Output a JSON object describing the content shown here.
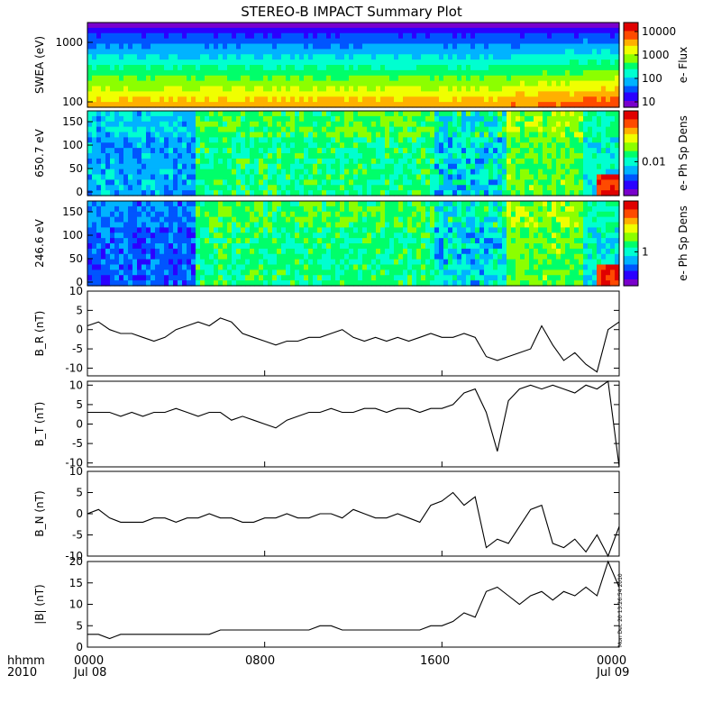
{
  "title": "STEREO-B IMPACT Summary Plot",
  "footer": {
    "hhmm": "hhmm",
    "year": "2010",
    "ticks": [
      {
        "time": "0000",
        "date": "Jul 08"
      },
      {
        "time": "0800",
        "date": ""
      },
      {
        "time": "1600",
        "date": ""
      },
      {
        "time": "0000",
        "date": "Jul 09"
      }
    ]
  },
  "timestamp_stamp": "Mon Dec 20 13:26:54 2010",
  "colors": {
    "axis": "#000000",
    "line": "#000000",
    "colormap": [
      "#7a00cc",
      "#2b00ff",
      "#0055ff",
      "#00b3ff",
      "#00ffd0",
      "#00ff6a",
      "#8cff00",
      "#f0ff00",
      "#ffb000",
      "#ff4a00",
      "#e00000"
    ]
  },
  "chart_data": [
    {
      "type": "heatmap",
      "name": "swea",
      "ylabel": "SWEA (eV)",
      "yscale": "log",
      "yticks": [
        "1000",
        "100"
      ],
      "colorbar_label": "e- Flux",
      "colorbar_ticks": [
        "10000",
        "1000",
        "100",
        "10"
      ]
    },
    {
      "type": "heatmap",
      "name": "pad650",
      "ylabel": "650.7 eV",
      "ylim": [
        0,
        180
      ],
      "yticks": [
        "150",
        "100",
        "50",
        "0"
      ],
      "colorbar_label": "e- Ph Sp Dens",
      "colorbar_ticks": [
        "0.01"
      ]
    },
    {
      "type": "heatmap",
      "name": "pad246",
      "ylabel": "246.6 eV",
      "ylim": [
        0,
        180
      ],
      "yticks": [
        "150",
        "100",
        "50",
        "0"
      ],
      "colorbar_label": "e- Ph Sp Dens",
      "colorbar_ticks": [
        "1"
      ]
    },
    {
      "type": "line",
      "name": "br",
      "ylabel": "B_R (nT)",
      "ylim": [
        -12,
        10
      ],
      "yticks": [
        "10",
        "5",
        "0",
        "-5",
        "-10"
      ],
      "x_hours": [
        0,
        0.5,
        1,
        1.5,
        2,
        2.5,
        3,
        3.5,
        4,
        4.5,
        5,
        5.5,
        6,
        6.5,
        7,
        7.5,
        8,
        8.5,
        9,
        9.5,
        10,
        10.5,
        11,
        11.5,
        12,
        12.5,
        13,
        13.5,
        14,
        14.5,
        15,
        15.5,
        16,
        16.5,
        17,
        17.5,
        18,
        18.5,
        19,
        19.5,
        20,
        20.5,
        21,
        21.5,
        22,
        22.5,
        23,
        23.5,
        24
      ],
      "values": [
        1,
        2,
        0,
        -1,
        -1,
        -2,
        -3,
        -2,
        0,
        1,
        2,
        1,
        3,
        2,
        -1,
        -2,
        -3,
        -4,
        -3,
        -3,
        -2,
        -2,
        -1,
        0,
        -2,
        -3,
        -2,
        -3,
        -2,
        -3,
        -2,
        -1,
        -2,
        -2,
        -1,
        -2,
        -7,
        -8,
        -7,
        -6,
        -5,
        1,
        -4,
        -8,
        -6,
        -9,
        -11,
        0,
        2
      ]
    },
    {
      "type": "line",
      "name": "bt",
      "ylabel": "B_T (nT)",
      "ylim": [
        -11,
        11
      ],
      "yticks": [
        "10",
        "5",
        "0",
        "-5",
        "-10"
      ],
      "x_hours": [
        0,
        0.5,
        1,
        1.5,
        2,
        2.5,
        3,
        3.5,
        4,
        4.5,
        5,
        5.5,
        6,
        6.5,
        7,
        7.5,
        8,
        8.5,
        9,
        9.5,
        10,
        10.5,
        11,
        11.5,
        12,
        12.5,
        13,
        13.5,
        14,
        14.5,
        15,
        15.5,
        16,
        16.5,
        17,
        17.5,
        18,
        18.5,
        19,
        19.5,
        20,
        20.5,
        21,
        21.5,
        22,
        22.5,
        23,
        23.5,
        24
      ],
      "values": [
        3,
        3,
        3,
        2,
        3,
        2,
        3,
        3,
        4,
        3,
        2,
        3,
        3,
        1,
        2,
        1,
        0,
        -1,
        1,
        2,
        3,
        3,
        4,
        3,
        3,
        4,
        4,
        3,
        4,
        4,
        3,
        4,
        4,
        5,
        8,
        9,
        3,
        -7,
        6,
        9,
        10,
        9,
        10,
        9,
        8,
        10,
        9,
        11,
        -11
      ]
    },
    {
      "type": "line",
      "name": "bn",
      "ylabel": "B_N (nT)",
      "ylim": [
        -10,
        10
      ],
      "yticks": [
        "10",
        "5",
        "0",
        "-5",
        "-10"
      ],
      "x_hours": [
        0,
        0.5,
        1,
        1.5,
        2,
        2.5,
        3,
        3.5,
        4,
        4.5,
        5,
        5.5,
        6,
        6.5,
        7,
        7.5,
        8,
        8.5,
        9,
        9.5,
        10,
        10.5,
        11,
        11.5,
        12,
        12.5,
        13,
        13.5,
        14,
        14.5,
        15,
        15.5,
        16,
        16.5,
        17,
        17.5,
        18,
        18.5,
        19,
        19.5,
        20,
        20.5,
        21,
        21.5,
        22,
        22.5,
        23,
        23.5,
        24
      ],
      "values": [
        0,
        1,
        -1,
        -2,
        -2,
        -2,
        -1,
        -1,
        -2,
        -1,
        -1,
        0,
        -1,
        -1,
        -2,
        -2,
        -1,
        -1,
        0,
        -1,
        -1,
        0,
        0,
        -1,
        1,
        0,
        -1,
        -1,
        0,
        -1,
        -2,
        2,
        3,
        5,
        2,
        4,
        -8,
        -6,
        -7,
        -3,
        1,
        2,
        -7,
        -8,
        -6,
        -9,
        -5,
        -10,
        -3
      ]
    },
    {
      "type": "line",
      "name": "bmag",
      "ylabel": "|B| (nT)",
      "ylim": [
        0,
        20
      ],
      "yticks": [
        "20",
        "15",
        "10",
        "5",
        "0"
      ],
      "x_hours": [
        0,
        0.5,
        1,
        1.5,
        2,
        2.5,
        3,
        3.5,
        4,
        4.5,
        5,
        5.5,
        6,
        6.5,
        7,
        7.5,
        8,
        8.5,
        9,
        9.5,
        10,
        10.5,
        11,
        11.5,
        12,
        12.5,
        13,
        13.5,
        14,
        14.5,
        15,
        15.5,
        16,
        16.5,
        17,
        17.5,
        18,
        18.5,
        19,
        19.5,
        20,
        20.5,
        21,
        21.5,
        22,
        22.5,
        23,
        23.5,
        24
      ],
      "values": [
        3,
        3,
        2,
        3,
        3,
        3,
        3,
        3,
        3,
        3,
        3,
        3,
        4,
        4,
        4,
        4,
        4,
        4,
        4,
        4,
        4,
        5,
        5,
        4,
        4,
        4,
        4,
        4,
        4,
        4,
        4,
        5,
        5,
        6,
        8,
        7,
        13,
        14,
        12,
        10,
        12,
        13,
        11,
        13,
        12,
        14,
        12,
        20,
        14
      ]
    }
  ]
}
